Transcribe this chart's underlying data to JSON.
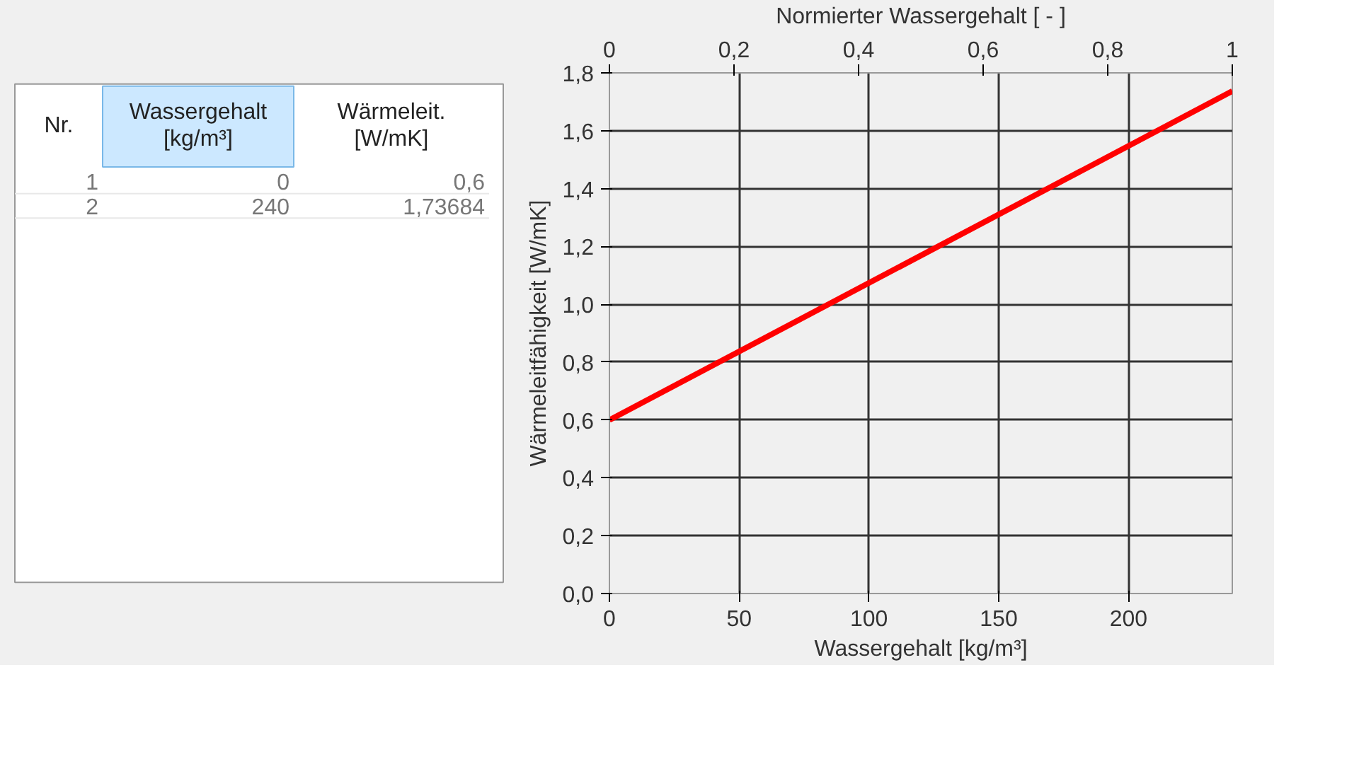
{
  "chart_data": [
    {
      "type": "other",
      "annotations": [
        "Nr.",
        "Wassergehalt [kg/m³]",
        "Wärmeleit. [W/mK]",
        "1",
        "0",
        "0,6",
        "2",
        "240",
        "1,73684"
      ]
    },
    {
      "type": "line",
      "xlabel": "Wassergehalt [kg/m³]",
      "ylabel": "Wärmeleitfähigkeit [W/mK]",
      "x2label": "Normierter Wassergehalt [ - ]",
      "x": [
        0,
        240
      ],
      "series": [
        {
          "color": "#ff0000",
          "values": [
            0.6,
            1.73684
          ]
        }
      ],
      "xlim": [
        0,
        240
      ],
      "xticks": [
        0,
        50,
        100,
        150,
        200
      ],
      "x2lim": [
        0,
        1
      ],
      "x2ticks": [
        0,
        {
          "value": 0.2,
          "label": "0,2"
        },
        {
          "value": 0.4,
          "label": "0,4"
        },
        {
          "value": 0.6,
          "label": "0,6"
        },
        {
          "value": 0.8,
          "label": "0,8"
        },
        1
      ],
      "ylim": [
        0,
        1.8
      ],
      "yticks": [
        {
          "value": 0,
          "label": "0,0"
        },
        {
          "value": 0.2,
          "label": "0,2"
        },
        {
          "value": 0.4,
          "label": "0,4"
        },
        {
          "value": 0.6,
          "label": "0,6"
        },
        {
          "value": 0.8,
          "label": "0,8"
        },
        {
          "value": 1.0,
          "label": "1,0"
        },
        {
          "value": 1.2,
          "label": "1,2"
        },
        {
          "value": 1.4,
          "label": "1,4"
        },
        {
          "value": 1.6,
          "label": "1,6"
        },
        {
          "value": 1.8,
          "label": "1,8"
        }
      ],
      "grid": true,
      "marker": "none",
      "line_style": "solid"
    }
  ]
}
